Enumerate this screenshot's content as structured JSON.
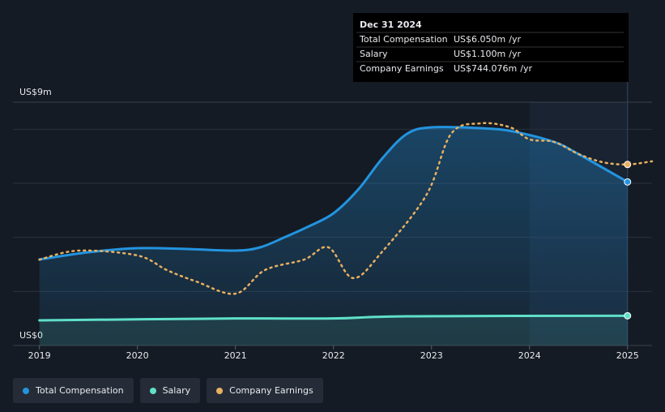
{
  "chart_data": {
    "type": "line",
    "xlim": [
      2018.73,
      2025.25
    ],
    "xticks": [
      2019,
      2020,
      2021,
      2022,
      2023,
      2024,
      2025
    ],
    "ylim": [
      0,
      9
    ],
    "yticks": [
      {
        "value": 0,
        "label": "US$0"
      },
      {
        "value": 9,
        "label": "US$9m"
      }
    ],
    "gridlines": [
      2,
      4,
      6,
      8
    ],
    "y2lim": [
      0,
      1000
    ],
    "grid": true,
    "series": [
      {
        "name": "Total Compensation",
        "color": "#2394df",
        "x": [
          2019,
          2019.5,
          2020,
          2020.5,
          2021,
          2021.25,
          2021.5,
          2021.75,
          2022,
          2022.25,
          2022.5,
          2022.75,
          2023,
          2023.5,
          2023.83,
          2024.25,
          2024.5,
          2025
        ],
        "values": [
          3.18,
          3.45,
          3.6,
          3.57,
          3.51,
          3.63,
          4.0,
          4.41,
          4.89,
          5.76,
          6.93,
          7.83,
          8.07,
          8.04,
          7.92,
          7.53,
          7.08,
          6.05
        ]
      },
      {
        "name": "Salary",
        "color": "#5fe0c8",
        "x": [
          2019,
          2021,
          2022,
          2022.75,
          2025
        ],
        "values": [
          0.93,
          1.0,
          1.0,
          1.08,
          1.1
        ]
      },
      {
        "name": "Company Earnings",
        "color": "#e8b060",
        "axis": "y2",
        "x": [
          2019,
          2019.4,
          2020,
          2020.3,
          2020.6,
          2021,
          2021.3,
          2021.7,
          2021.95,
          2022.2,
          2022.5,
          2022.95,
          2023.2,
          2023.5,
          2023.8,
          2024,
          2024.25,
          2024.5,
          2024.75,
          2025,
          2025.25
        ],
        "values": [
          353,
          390,
          370,
          310,
          263,
          213,
          310,
          353,
          403,
          277,
          387,
          620,
          870,
          913,
          897,
          847,
          837,
          787,
          753,
          744.076,
          757
        ]
      }
    ],
    "tooltip": {
      "date": "Dec 31 2024",
      "unit": "/yr",
      "rows": [
        {
          "label": "Total Compensation",
          "value": "US$6.050m"
        },
        {
          "label": "Salary",
          "value": "US$1.100m"
        },
        {
          "label": "Company Earnings",
          "value": "US$744.076m"
        }
      ]
    }
  }
}
